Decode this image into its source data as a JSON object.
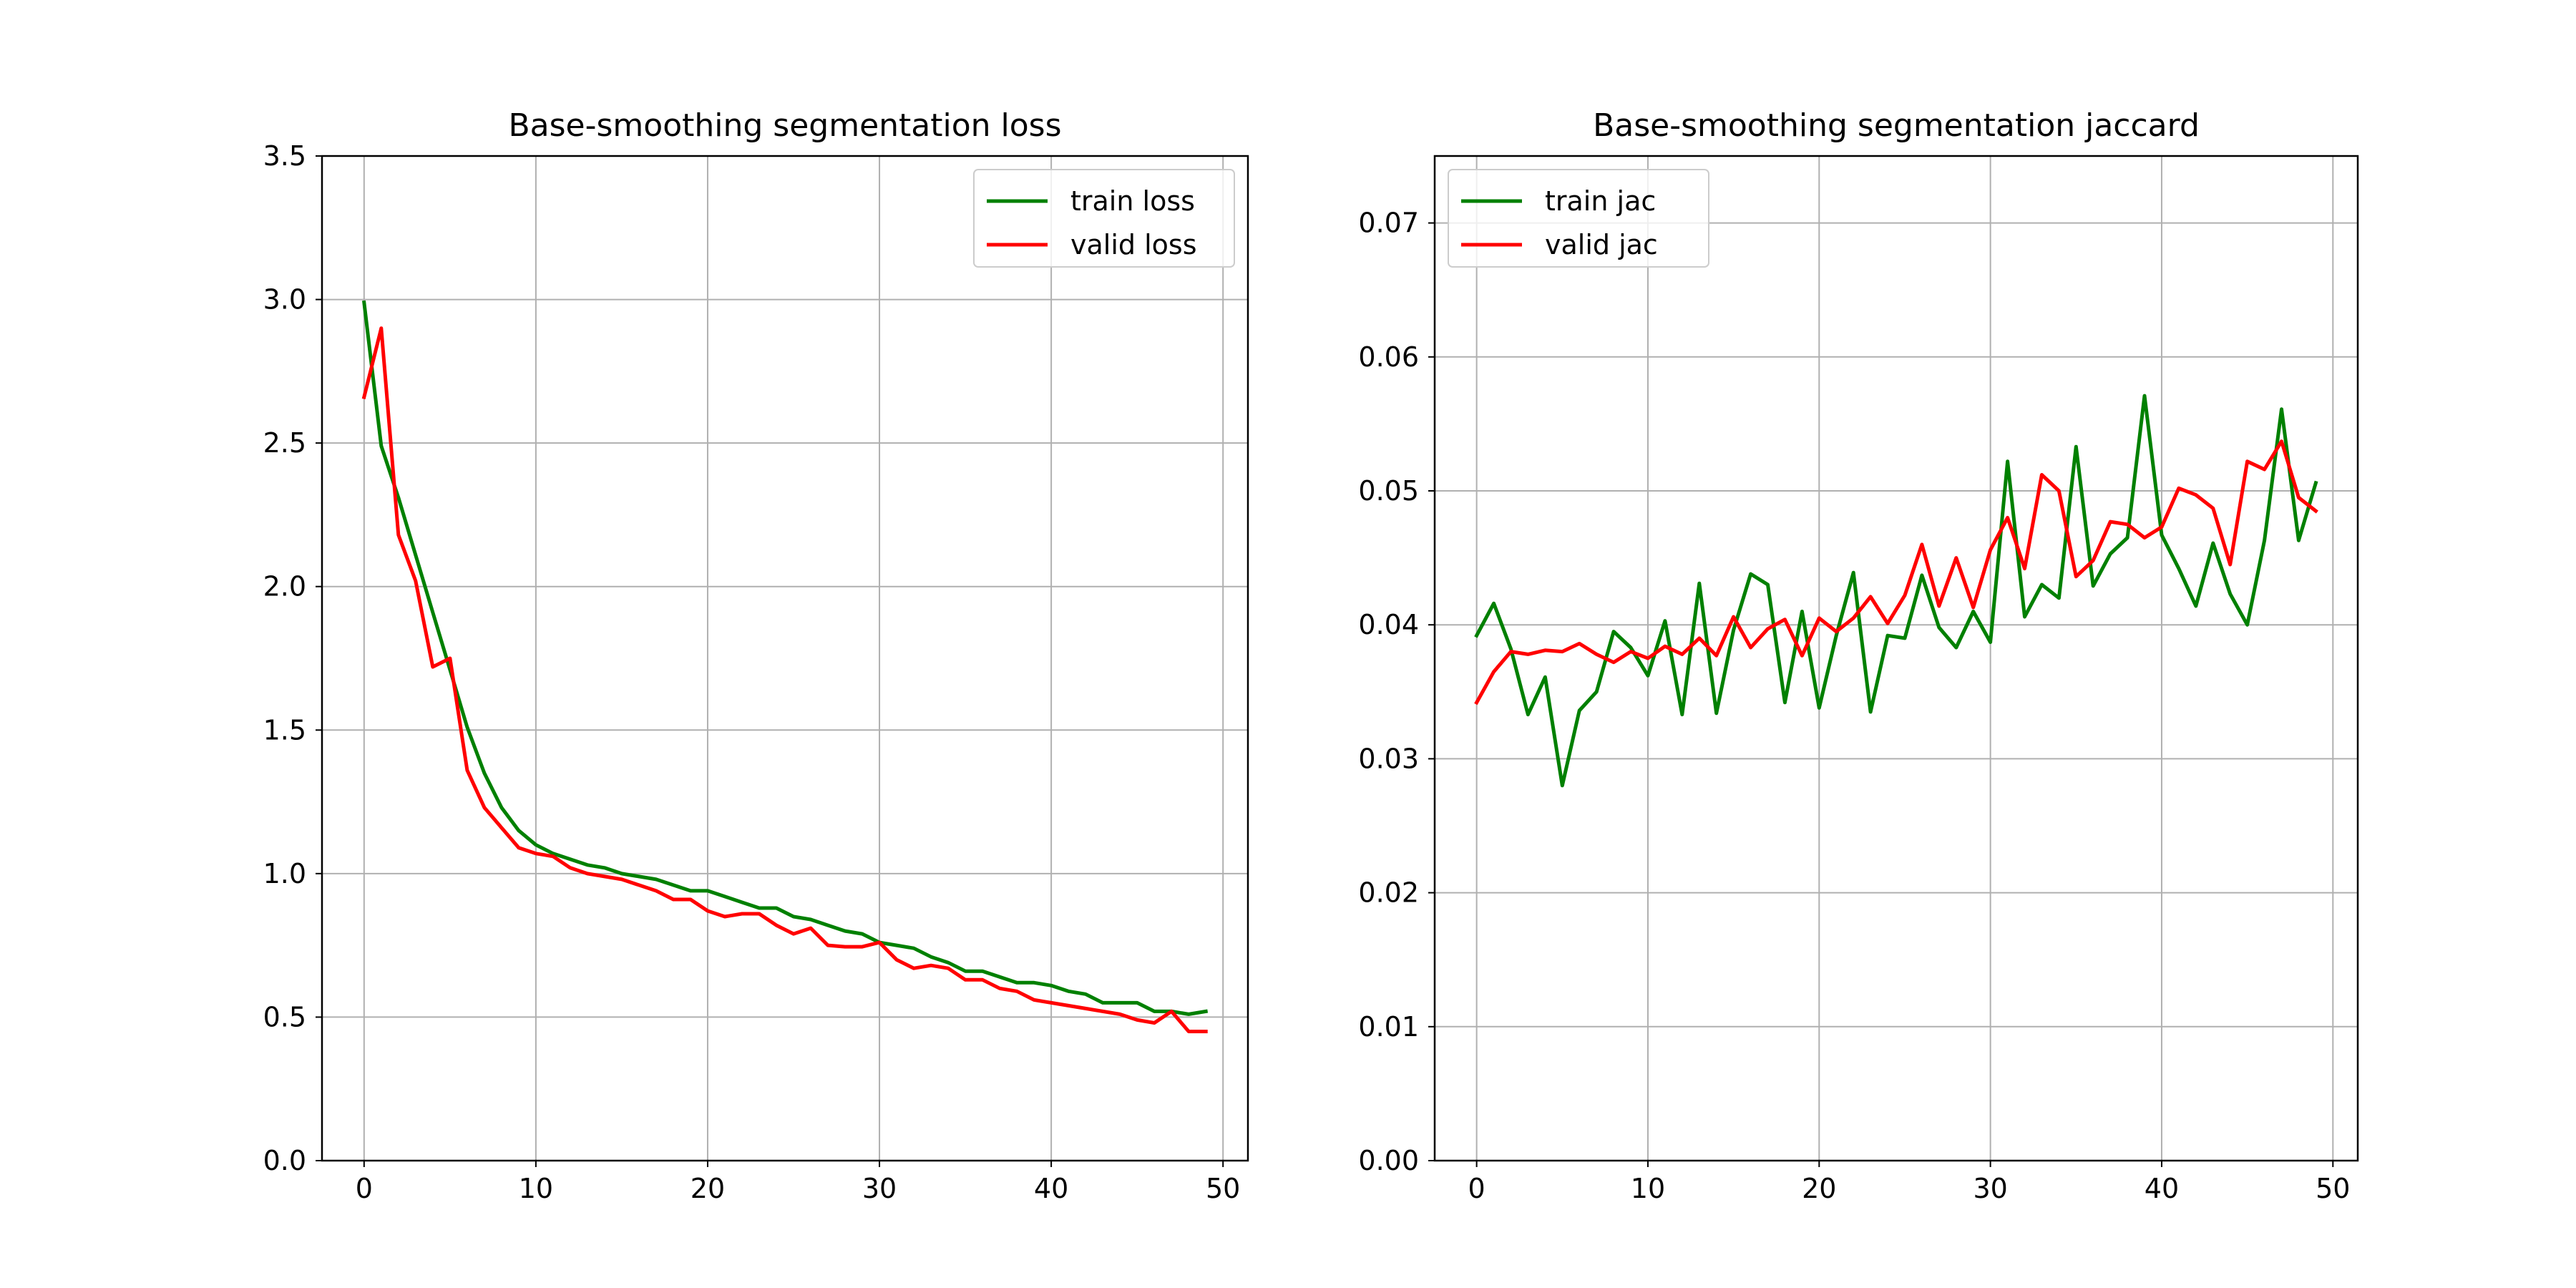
{
  "chart_data": [
    {
      "type": "line",
      "title": "Base-smoothing segmentation  loss",
      "xlabel": "",
      "ylabel": "",
      "xlim": [
        -2.45,
        51.45
      ],
      "ylim": [
        0,
        3.5
      ],
      "xticks": [
        0,
        10,
        20,
        30,
        40,
        50
      ],
      "yticks": [
        0.0,
        0.5,
        1.0,
        1.5,
        2.0,
        2.5,
        3.0,
        3.5
      ],
      "ytick_decimals": 1,
      "grid": true,
      "legend_position": "upper-right",
      "x": [
        0,
        1,
        2,
        3,
        4,
        5,
        6,
        7,
        8,
        9,
        10,
        11,
        12,
        13,
        14,
        15,
        16,
        17,
        18,
        19,
        20,
        21,
        22,
        23,
        24,
        25,
        26,
        27,
        28,
        29,
        30,
        31,
        32,
        33,
        34,
        35,
        36,
        37,
        38,
        39,
        40,
        41,
        42,
        43,
        44,
        45,
        46,
        47,
        48,
        49
      ],
      "series": [
        {
          "name": "train loss",
          "color": "#008000",
          "values": [
            2.99,
            2.49,
            2.31,
            2.11,
            1.91,
            1.71,
            1.51,
            1.35,
            1.23,
            1.15,
            1.1,
            1.07,
            1.05,
            1.03,
            1.02,
            1.0,
            0.99,
            0.98,
            0.96,
            0.94,
            0.94,
            0.92,
            0.9,
            0.88,
            0.88,
            0.85,
            0.84,
            0.82,
            0.8,
            0.79,
            0.76,
            0.75,
            0.74,
            0.71,
            0.69,
            0.66,
            0.66,
            0.64,
            0.62,
            0.62,
            0.61,
            0.59,
            0.58,
            0.55,
            0.55,
            0.55,
            0.52,
            0.52,
            0.51,
            0.52
          ]
        },
        {
          "name": "valid loss",
          "color": "#ff0000",
          "values": [
            2.66,
            2.9,
            2.18,
            2.02,
            1.72,
            1.75,
            1.36,
            1.23,
            1.16,
            1.09,
            1.07,
            1.06,
            1.02,
            1.0,
            0.99,
            0.98,
            0.96,
            0.94,
            0.91,
            0.91,
            0.87,
            0.85,
            0.86,
            0.86,
            0.82,
            0.79,
            0.81,
            0.75,
            0.745,
            0.745,
            0.76,
            0.7,
            0.67,
            0.68,
            0.67,
            0.63,
            0.63,
            0.6,
            0.59,
            0.56,
            0.55,
            0.54,
            0.53,
            0.52,
            0.51,
            0.49,
            0.48,
            0.52,
            0.45,
            0.45
          ]
        }
      ]
    },
    {
      "type": "line",
      "title": "Base-smoothing segmentation jaccard",
      "xlabel": "",
      "ylabel": "",
      "xlim": [
        -2.45,
        51.45
      ],
      "ylim": [
        0,
        0.075
      ],
      "xticks": [
        0,
        10,
        20,
        30,
        40,
        50
      ],
      "yticks": [
        0.0,
        0.01,
        0.02,
        0.03,
        0.04,
        0.05,
        0.06,
        0.07
      ],
      "ytick_decimals": 2,
      "grid": true,
      "legend_position": "upper-left",
      "x": [
        0,
        1,
        2,
        3,
        4,
        5,
        6,
        7,
        8,
        9,
        10,
        11,
        12,
        13,
        14,
        15,
        16,
        17,
        18,
        19,
        20,
        21,
        22,
        23,
        24,
        25,
        26,
        27,
        28,
        29,
        30,
        31,
        32,
        33,
        34,
        35,
        36,
        37,
        38,
        39,
        40,
        41,
        42,
        43,
        44,
        45,
        46,
        47,
        48,
        49
      ],
      "series": [
        {
          "name": "train jac",
          "color": "#008000",
          "values": [
            0.0392,
            0.0416,
            0.0382,
            0.0333,
            0.0361,
            0.028,
            0.0336,
            0.035,
            0.0395,
            0.0383,
            0.0362,
            0.0403,
            0.0333,
            0.0431,
            0.0334,
            0.0396,
            0.0438,
            0.043,
            0.0342,
            0.041,
            0.0338,
            0.0392,
            0.0439,
            0.0335,
            0.0392,
            0.039,
            0.0437,
            0.0398,
            0.0383,
            0.041,
            0.0387,
            0.0522,
            0.0406,
            0.043,
            0.042,
            0.0533,
            0.0429,
            0.0453,
            0.0465,
            0.0571,
            0.0467,
            0.0442,
            0.0414,
            0.0461,
            0.0423,
            0.04,
            0.0463,
            0.0561,
            0.0463,
            0.0506
          ]
        },
        {
          "name": "valid jac",
          "color": "#ff0000",
          "values": [
            0.0342,
            0.0365,
            0.038,
            0.0378,
            0.0381,
            0.038,
            0.0386,
            0.0378,
            0.0372,
            0.038,
            0.0375,
            0.0384,
            0.0378,
            0.039,
            0.0377,
            0.0406,
            0.0383,
            0.0397,
            0.0404,
            0.0377,
            0.0405,
            0.0395,
            0.0405,
            0.0421,
            0.0401,
            0.0422,
            0.046,
            0.0414,
            0.045,
            0.0413,
            0.0456,
            0.048,
            0.0442,
            0.0512,
            0.05,
            0.0436,
            0.0448,
            0.0477,
            0.0475,
            0.0465,
            0.0473,
            0.0502,
            0.0497,
            0.0487,
            0.0445,
            0.0522,
            0.0516,
            0.0537,
            0.0495,
            0.0485
          ]
        }
      ]
    }
  ]
}
